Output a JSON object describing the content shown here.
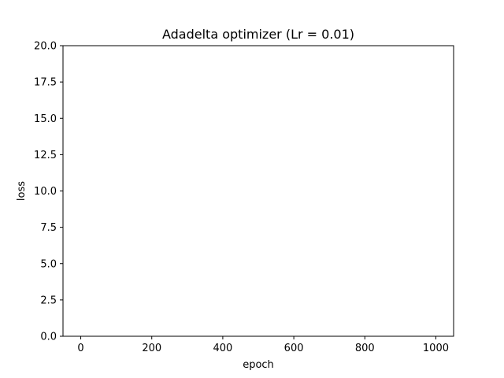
{
  "chart_data": {
    "type": "line",
    "title": "Adadelta optimizer (Lr = 0.01)",
    "xlabel": "epoch",
    "ylabel": "loss",
    "xlim": [
      -50,
      1050
    ],
    "ylim": [
      0,
      20
    ],
    "x_ticks": [
      0,
      200,
      400,
      600,
      800,
      1000
    ],
    "x_tick_labels": [
      "0",
      "200",
      "400",
      "600",
      "800",
      "1000"
    ],
    "y_ticks": [
      0,
      2.5,
      5,
      7.5,
      10,
      12.5,
      15,
      17.5,
      20
    ],
    "y_tick_labels": [
      "0.0",
      "2.5",
      "5.0",
      "7.5",
      "10.0",
      "12.5",
      "15.0",
      "17.5",
      "20.0"
    ],
    "series": [],
    "grid": false,
    "colors": {
      "axis": "#000000",
      "background": "#ffffff"
    }
  }
}
